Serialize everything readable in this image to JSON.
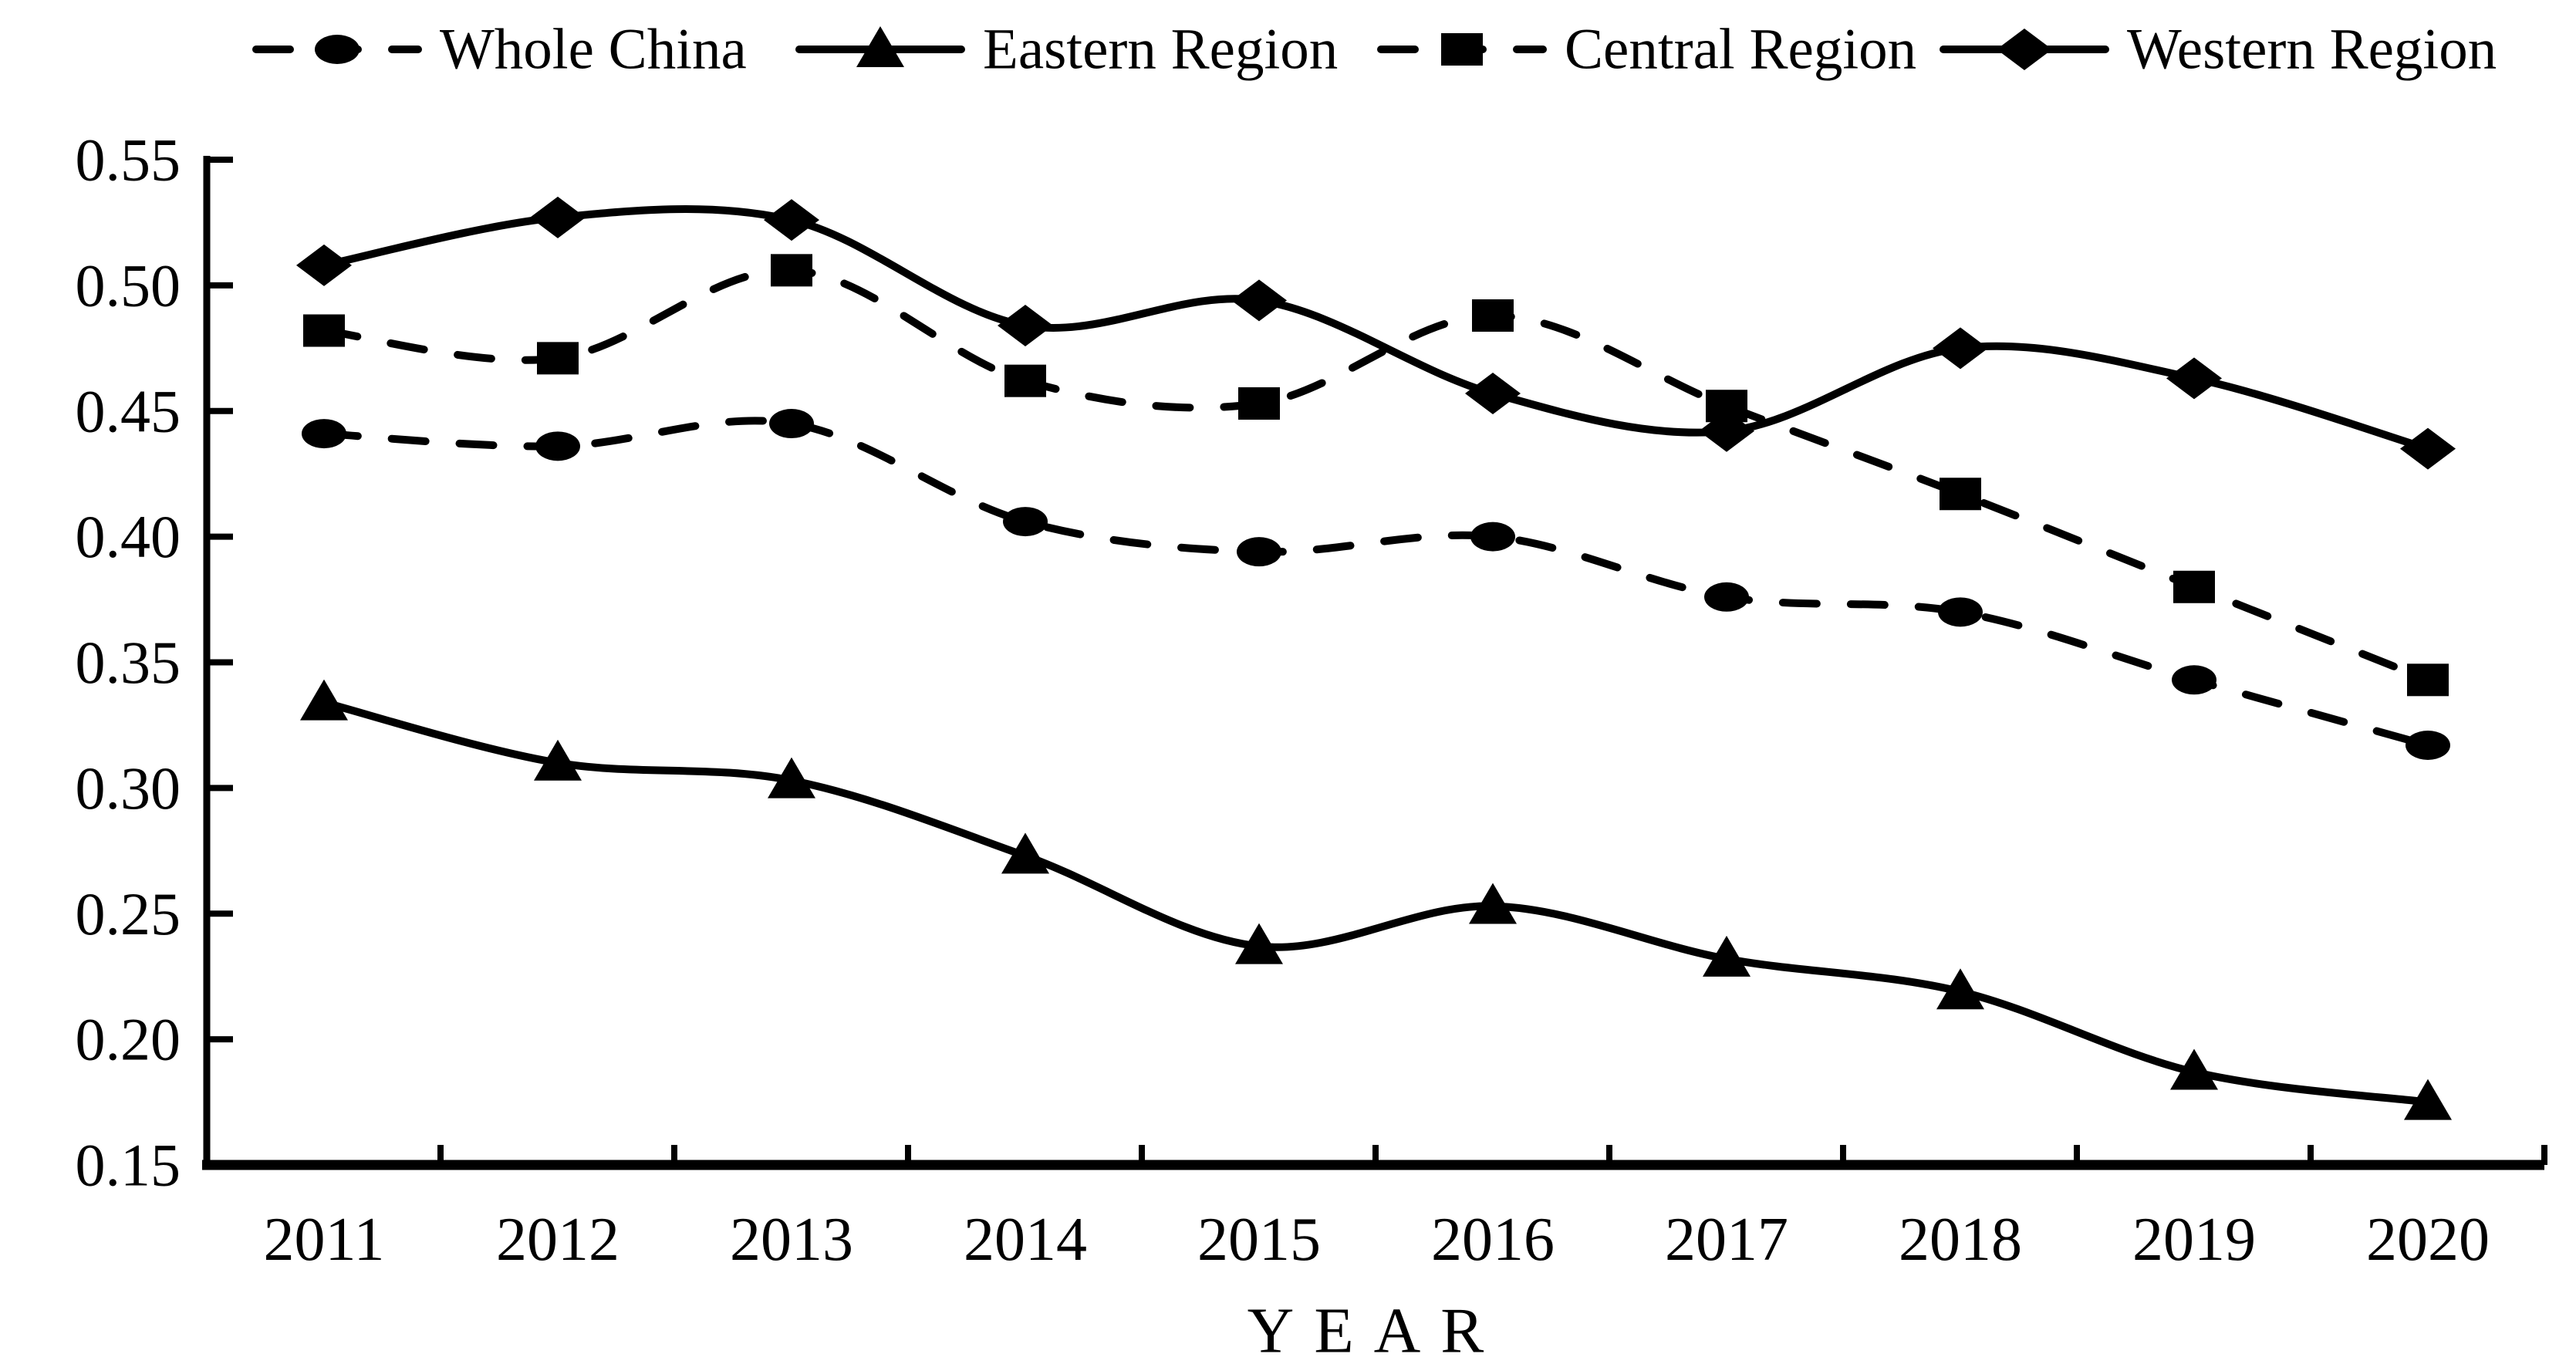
{
  "chart_data": {
    "type": "line",
    "title": "",
    "xlabel": "YEAR",
    "ylabel": "",
    "x_categories": [
      "2011",
      "2012",
      "2013",
      "2014",
      "2015",
      "2016",
      "2017",
      "2018",
      "2019",
      "2020"
    ],
    "ylim": [
      0.15,
      0.55
    ],
    "ytick_step": 0.05,
    "ytick_labels": [
      "0.15",
      "0.20",
      "0.25",
      "0.30",
      "0.35",
      "0.40",
      "0.45",
      "0.50",
      "0.55"
    ],
    "grid": false,
    "legend_position": "top",
    "foreground_color": "#000000",
    "background_color": "#ffffff",
    "series": [
      {
        "name": "Whole China",
        "marker": "circle",
        "line": "dashed",
        "values": [
          0.441,
          0.436,
          0.445,
          0.406,
          0.394,
          0.4,
          0.376,
          0.37,
          0.343,
          0.317
        ]
      },
      {
        "name": "Eastern Region",
        "marker": "triangle",
        "line": "solid",
        "values": [
          0.334,
          0.31,
          0.303,
          0.273,
          0.237,
          0.253,
          0.232,
          0.219,
          0.187,
          0.175
        ]
      },
      {
        "name": "Central Region",
        "marker": "square",
        "line": "dashed",
        "values": [
          0.482,
          0.471,
          0.506,
          0.462,
          0.453,
          0.488,
          0.452,
          0.417,
          0.38,
          0.343
        ]
      },
      {
        "name": "Western Region",
        "marker": "diamond",
        "line": "solid",
        "values": [
          0.508,
          0.527,
          0.526,
          0.484,
          0.494,
          0.457,
          0.442,
          0.475,
          0.463,
          0.435
        ]
      }
    ]
  }
}
